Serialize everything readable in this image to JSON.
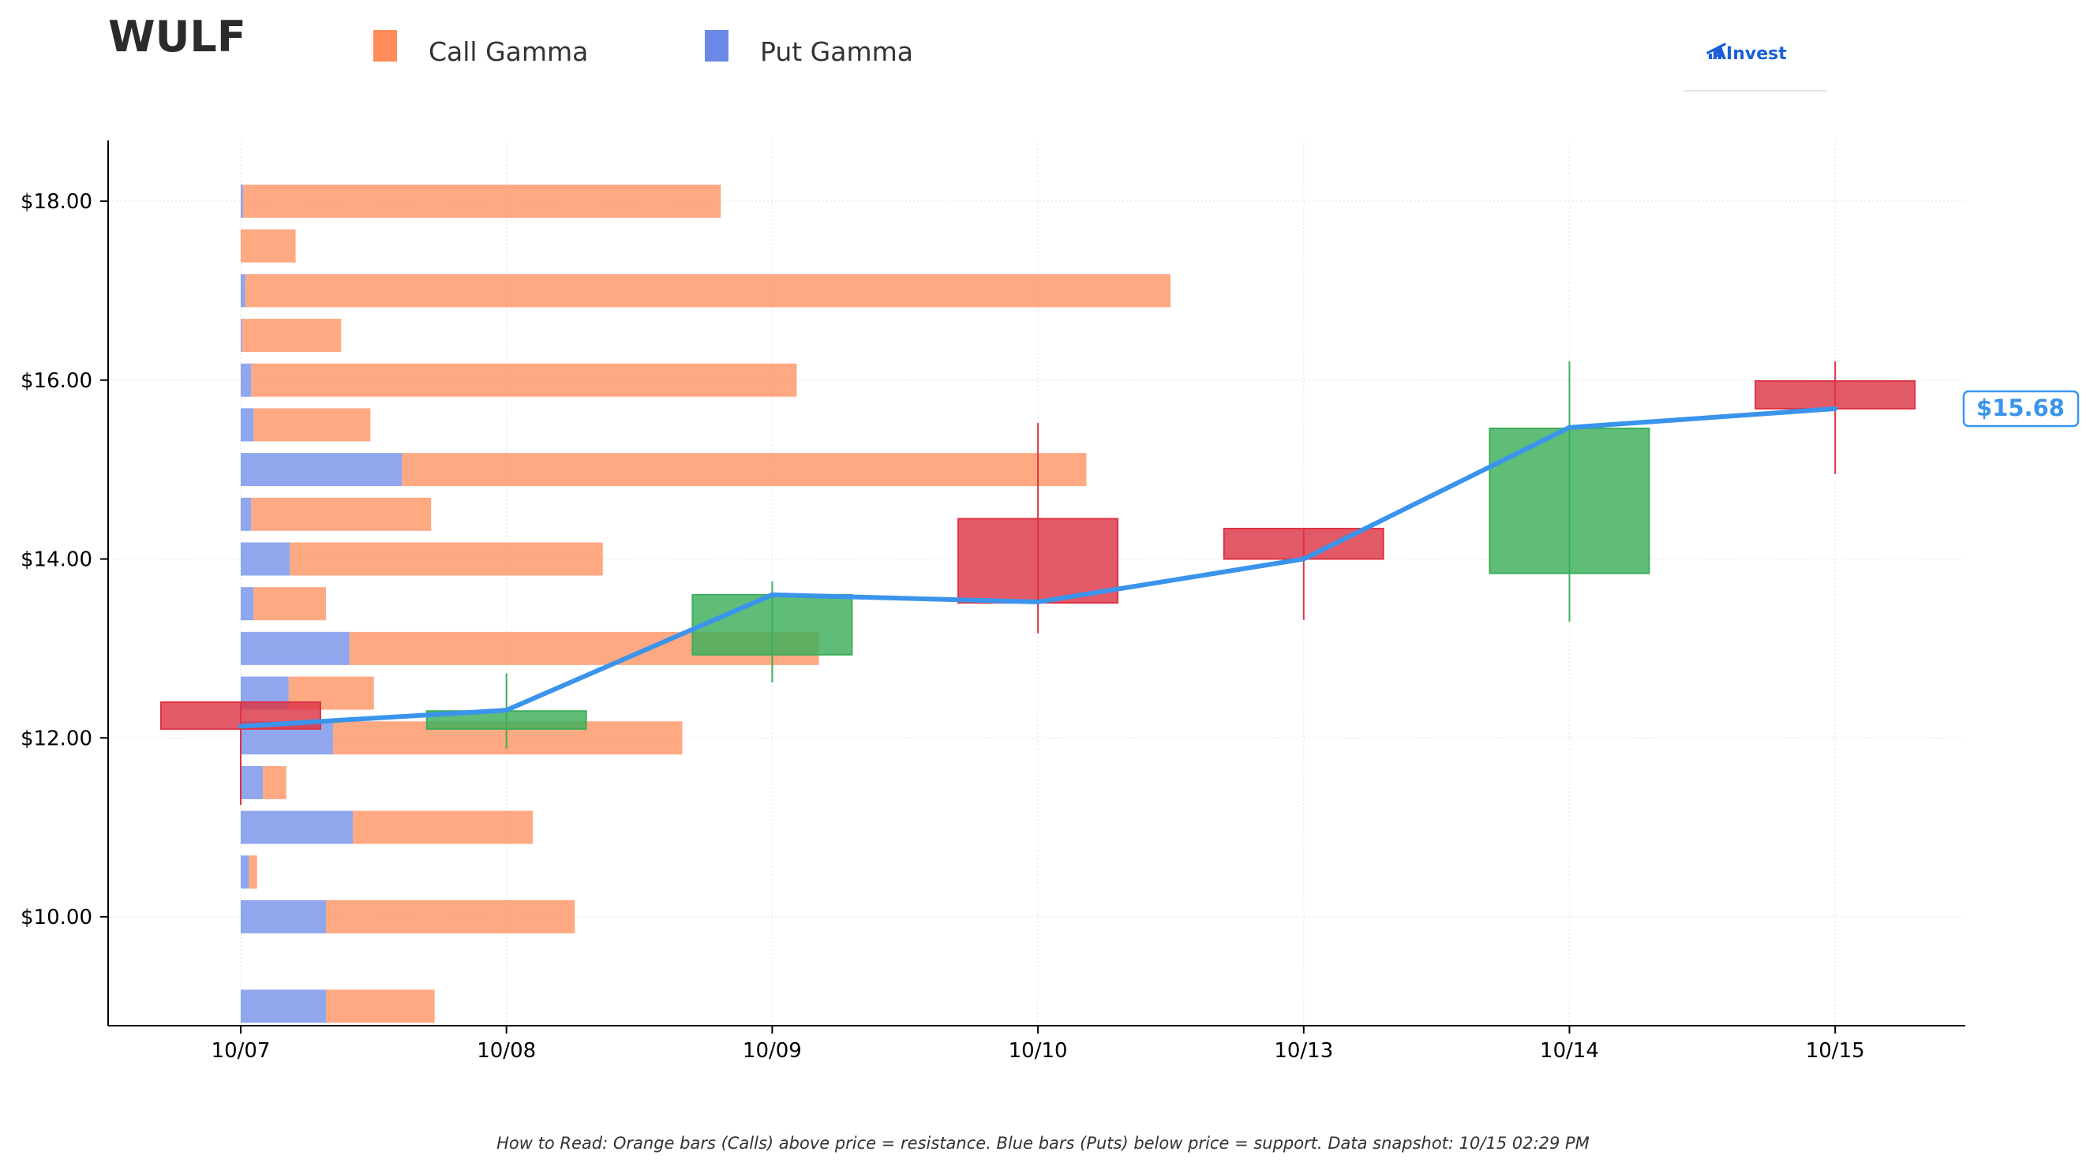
{
  "ticker": "WULF",
  "legend": {
    "call_label": "Call Gamma",
    "put_label": "Put Gamma"
  },
  "brand": {
    "name": "AInvest",
    "color": "#1a5fd6"
  },
  "footnote": "How to Read: Orange bars (Calls) above price = resistance. Blue bars (Puts) below price = support. Data snapshot: 10/15 02:29 PM",
  "colors": {
    "call": "#ff8c5a",
    "put": "#6b8ae8",
    "up": "#3cae5a",
    "down": "#dc3545",
    "price_line": "#3a94ec",
    "axis": "#000000",
    "grid": "#ececec"
  },
  "chart_data": {
    "type": "bar",
    "y_unit": "$",
    "ylim": [
      8.8,
      18.7
    ],
    "y_ticks": [
      "$18.00",
      "$16.00",
      "$14.00",
      "$12.00",
      "$10.00"
    ],
    "y_tick_values": [
      18,
      16,
      14,
      12,
      10
    ],
    "x_labels": [
      "10/07",
      "10/08",
      "10/09",
      "10/10",
      "10/13",
      "10/14",
      "10/15"
    ],
    "grid": true,
    "gamma_by_strike": [
      {
        "strike": 18.0,
        "call": 4.09,
        "put": 0.02
      },
      {
        "strike": 17.5,
        "call": 0.47,
        "put": 0.0
      },
      {
        "strike": 17.0,
        "call": 7.92,
        "put": 0.04
      },
      {
        "strike": 16.5,
        "call": 0.85,
        "put": 0.01
      },
      {
        "strike": 16.0,
        "call": 4.67,
        "put": 0.09
      },
      {
        "strike": 15.5,
        "call": 1.0,
        "put": 0.11
      },
      {
        "strike": 15.0,
        "call": 5.86,
        "put": 1.38
      },
      {
        "strike": 14.5,
        "call": 1.54,
        "put": 0.09
      },
      {
        "strike": 14.0,
        "call": 2.68,
        "put": 0.42
      },
      {
        "strike": 13.5,
        "call": 0.62,
        "put": 0.11
      },
      {
        "strike": 13.0,
        "call": 4.02,
        "put": 0.93
      },
      {
        "strike": 12.5,
        "call": 0.73,
        "put": 0.41
      },
      {
        "strike": 12.0,
        "call": 2.99,
        "put": 0.79
      },
      {
        "strike": 11.5,
        "call": 0.2,
        "put": 0.19
      },
      {
        "strike": 11.0,
        "call": 1.54,
        "put": 0.96
      },
      {
        "strike": 10.5,
        "call": 0.07,
        "put": 0.07
      },
      {
        "strike": 10.0,
        "call": 2.13,
        "put": 0.73
      },
      {
        "strike": 9.0,
        "call": 0.93,
        "put": 0.73
      }
    ],
    "candles": [
      {
        "date": "10/07",
        "open": 12.4,
        "close": 12.1,
        "high": 12.4,
        "low": 11.25
      },
      {
        "date": "10/08",
        "open": 12.1,
        "close": 12.3,
        "high": 12.72,
        "low": 11.88
      },
      {
        "date": "10/09",
        "open": 12.93,
        "close": 13.6,
        "high": 13.75,
        "low": 12.62
      },
      {
        "date": "10/10",
        "open": 14.45,
        "close": 13.51,
        "high": 15.52,
        "low": 13.17
      },
      {
        "date": "10/13",
        "open": 14.34,
        "close": 14.0,
        "high": 14.34,
        "low": 13.32
      },
      {
        "date": "10/14",
        "open": 13.84,
        "close": 15.46,
        "high": 16.21,
        "low": 13.3
      },
      {
        "date": "10/15",
        "open": 15.99,
        "close": 15.68,
        "high": 16.21,
        "low": 14.95
      }
    ],
    "price_line": [
      12.13,
      12.31,
      13.6,
      13.52,
      14.0,
      15.47,
      15.68
    ],
    "last_price_label": "$15.68"
  }
}
